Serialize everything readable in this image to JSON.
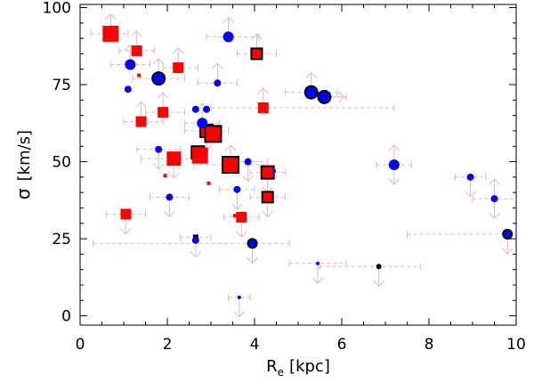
{
  "chart_data": {
    "type": "scatter",
    "title": "",
    "xlabel_main": "R",
    "xlabel_sub": "e",
    "xlabel_unit": "[kpc]",
    "ylabel_symbol": "σ",
    "ylabel_unit": "[km/s]",
    "xlim": [
      0,
      10
    ],
    "ylim": [
      -3,
      101
    ],
    "xticks": [
      0,
      2,
      4,
      6,
      8,
      10
    ],
    "xtick_labels": [
      "0",
      "2",
      "4",
      "6",
      "8",
      "10"
    ],
    "yticks": [
      0,
      25,
      50,
      75,
      100
    ],
    "ytick_labels": [
      "0",
      "25",
      "50",
      "75",
      "100"
    ],
    "grid": false,
    "colors": {
      "red": "#ff0000",
      "blue": "#0000ff",
      "black": "#000000",
      "error": "#e8b4c0"
    },
    "series": [
      {
        "name": "red squares",
        "marker": "square",
        "color": "red",
        "points": [
          {
            "x": 0.7,
            "y": 91.5,
            "size": 9,
            "outlined": false
          },
          {
            "x": 1.3,
            "y": 86,
            "size": 6,
            "outlined": false
          },
          {
            "x": 1.35,
            "y": 78,
            "size": 2,
            "outlined": false
          },
          {
            "x": 2.25,
            "y": 80.5,
            "size": 6,
            "outlined": false
          },
          {
            "x": 4.05,
            "y": 85,
            "size": 6,
            "outlined": true
          },
          {
            "x": 1.4,
            "y": 63,
            "size": 6,
            "outlined": false
          },
          {
            "x": 1.9,
            "y": 66,
            "size": 6,
            "outlined": false
          },
          {
            "x": 4.2,
            "y": 67.5,
            "size": 6,
            "outlined": false
          },
          {
            "x": 2.9,
            "y": 60,
            "size": 7,
            "outlined": true
          },
          {
            "x": 3.05,
            "y": 59,
            "size": 9,
            "outlined": true
          },
          {
            "x": 2.15,
            "y": 51,
            "size": 8,
            "outlined": false
          },
          {
            "x": 2.7,
            "y": 53,
            "size": 7,
            "outlined": true
          },
          {
            "x": 2.75,
            "y": 52,
            "size": 9,
            "outlined": false
          },
          {
            "x": 3.45,
            "y": 49,
            "size": 9,
            "outlined": true
          },
          {
            "x": 4.3,
            "y": 46.5,
            "size": 7,
            "outlined": true
          },
          {
            "x": 4.3,
            "y": 38.5,
            "size": 6,
            "outlined": true
          },
          {
            "x": 1.95,
            "y": 45.5,
            "size": 2,
            "outlined": false
          },
          {
            "x": 2.95,
            "y": 43,
            "size": 2,
            "outlined": false
          },
          {
            "x": 1.05,
            "y": 33,
            "size": 6,
            "outlined": false
          },
          {
            "x": 3.55,
            "y": 32.5,
            "size": 2,
            "outlined": false
          },
          {
            "x": 3.7,
            "y": 32,
            "size": 6,
            "outlined": false
          },
          {
            "x": 2.65,
            "y": 25.5,
            "size": 2,
            "outlined": true
          }
        ]
      },
      {
        "name": "blue circles",
        "marker": "circle",
        "color": "blue",
        "points": [
          {
            "x": 1.15,
            "y": 81.5,
            "size": 6,
            "outlined": false
          },
          {
            "x": 1.8,
            "y": 77,
            "size": 7,
            "outlined": true
          },
          {
            "x": 1.1,
            "y": 73.5,
            "size": 4,
            "outlined": false
          },
          {
            "x": 3.4,
            "y": 90.5,
            "size": 6,
            "outlined": false
          },
          {
            "x": 3.15,
            "y": 75.5,
            "size": 4,
            "outlined": false
          },
          {
            "x": 5.3,
            "y": 72.5,
            "size": 7,
            "outlined": true
          },
          {
            "x": 5.6,
            "y": 71,
            "size": 7,
            "outlined": true
          },
          {
            "x": 2.65,
            "y": 67,
            "size": 4,
            "outlined": false
          },
          {
            "x": 2.9,
            "y": 67,
            "size": 4,
            "outlined": false
          },
          {
            "x": 2.8,
            "y": 62.5,
            "size": 6,
            "outlined": false
          },
          {
            "x": 1.8,
            "y": 54,
            "size": 4,
            "outlined": false
          },
          {
            "x": 3.85,
            "y": 50,
            "size": 4,
            "outlined": false
          },
          {
            "x": 7.2,
            "y": 49,
            "size": 6,
            "outlined": false
          },
          {
            "x": 4.45,
            "y": 47,
            "size": 2,
            "outlined": false
          },
          {
            "x": 8.95,
            "y": 45,
            "size": 4,
            "outlined": false
          },
          {
            "x": 3.6,
            "y": 41,
            "size": 4,
            "outlined": false
          },
          {
            "x": 2.05,
            "y": 38.5,
            "size": 4,
            "outlined": false
          },
          {
            "x": 9.5,
            "y": 38,
            "size": 4,
            "outlined": false
          },
          {
            "x": 2.65,
            "y": 24.5,
            "size": 4,
            "outlined": false
          },
          {
            "x": 3.95,
            "y": 23.5,
            "size": 5,
            "outlined": true
          },
          {
            "x": 9.8,
            "y": 26.5,
            "size": 5,
            "outlined": true
          },
          {
            "x": 5.45,
            "y": 17,
            "size": 2,
            "outlined": false
          },
          {
            "x": 3.65,
            "y": 6,
            "size": 2,
            "outlined": false
          }
        ]
      },
      {
        "name": "black circles",
        "marker": "circle",
        "color": "black",
        "points": [
          {
            "x": 6.85,
            "y": 16,
            "size": 3,
            "outlined": false
          }
        ]
      }
    ],
    "error_bars": [
      {
        "x": 0.7,
        "y": 91.5,
        "xlo": 0.25,
        "xhi": 1.1,
        "arrow": "up"
      },
      {
        "x": 1.15,
        "y": 81.5,
        "xlo": 0.7,
        "xhi": 1.6,
        "arrow": "up"
      },
      {
        "x": 1.8,
        "y": 77,
        "xlo": 1.2,
        "xhi": 2.4,
        "arrow": "up"
      },
      {
        "x": 3.4,
        "y": 90.5,
        "xlo": 2.9,
        "xhi": 4.1,
        "arrow": "up"
      },
      {
        "x": 4.05,
        "y": 85,
        "xlo": 3.6,
        "xhi": 4.5,
        "arrow": "up"
      },
      {
        "x": 5.3,
        "y": 72.5,
        "xlo": 4.7,
        "xhi": 5.9,
        "arrow": "up"
      },
      {
        "x": 5.6,
        "y": 71,
        "xlo": 5.2,
        "xhi": 6.1,
        "arrow": "right"
      },
      {
        "x": 7.2,
        "y": 49,
        "xlo": 6.8,
        "xhi": 7.6,
        "arrow": "updown"
      },
      {
        "x": 8.95,
        "y": 45,
        "xlo": 8.6,
        "xhi": 9.3,
        "arrow": "down"
      },
      {
        "x": 9.5,
        "y": 38,
        "xlo": 9.0,
        "xhi": 10.0,
        "arrow": "updown"
      },
      {
        "x": 9.8,
        "y": 26.5,
        "xlo": 7.5,
        "xhi": 10.0,
        "arrow": "down"
      },
      {
        "x": 6.85,
        "y": 16,
        "xlo": 5.5,
        "xhi": 7.8,
        "arrow": "down"
      },
      {
        "x": 5.45,
        "y": 17,
        "xlo": 4.8,
        "xhi": 6.1,
        "arrow": "down"
      },
      {
        "x": 3.95,
        "y": 23.5,
        "xlo": 0.3,
        "xhi": 4.8,
        "arrow": "down"
      },
      {
        "x": 3.65,
        "y": 6,
        "xlo": 3.4,
        "xhi": 3.9,
        "arrow": "down"
      },
      {
        "x": 2.65,
        "y": 25.5,
        "xlo": 2.3,
        "xhi": 3.0,
        "arrow": "down"
      },
      {
        "x": 1.05,
        "y": 33,
        "xlo": 0.6,
        "xhi": 1.5,
        "arrow": "down"
      },
      {
        "x": 4.2,
        "y": 67.5,
        "xlo": 3.0,
        "xhi": 7.2,
        "arrow": "up"
      },
      {
        "x": 2.9,
        "y": 60,
        "xlo": 2.4,
        "xhi": 3.4,
        "arrow": "down"
      },
      {
        "x": 4.3,
        "y": 46.5,
        "xlo": 3.9,
        "xhi": 4.7,
        "arrow": "down"
      },
      {
        "x": 4.3,
        "y": 38.5,
        "xlo": 3.9,
        "xhi": 4.7,
        "arrow": "down"
      },
      {
        "x": 3.45,
        "y": 49,
        "xlo": 2.6,
        "xhi": 4.3,
        "arrow": "up"
      },
      {
        "x": 2.15,
        "y": 51,
        "xlo": 1.4,
        "xhi": 2.9,
        "arrow": "down"
      },
      {
        "x": 1.4,
        "y": 63,
        "xlo": 1.0,
        "xhi": 1.9,
        "arrow": "up"
      },
      {
        "x": 1.9,
        "y": 66,
        "xlo": 1.5,
        "xhi": 2.4,
        "arrow": "up"
      },
      {
        "x": 2.25,
        "y": 80.5,
        "xlo": 1.9,
        "xhi": 2.7,
        "arrow": "up"
      },
      {
        "x": 1.3,
        "y": 86,
        "xlo": 0.9,
        "xhi": 1.7,
        "arrow": "up"
      },
      {
        "x": 3.15,
        "y": 75.5,
        "xlo": 2.7,
        "xhi": 3.6,
        "arrow": "up"
      },
      {
        "x": 2.8,
        "y": 62.5,
        "xlo": 2.4,
        "xhi": 3.2,
        "arrow": "up"
      },
      {
        "x": 3.7,
        "y": 32,
        "xlo": 3.3,
        "xhi": 4.1,
        "arrow": "down"
      },
      {
        "x": 2.05,
        "y": 38.5,
        "xlo": 1.6,
        "xhi": 2.5,
        "arrow": "down"
      },
      {
        "x": 3.6,
        "y": 41,
        "xlo": 3.2,
        "xhi": 4.0,
        "arrow": "down"
      },
      {
        "x": 1.8,
        "y": 54,
        "xlo": 1.3,
        "xhi": 2.3,
        "arrow": "down"
      },
      {
        "x": 3.85,
        "y": 50,
        "xlo": 3.4,
        "xhi": 4.3,
        "arrow": "down"
      }
    ]
  }
}
